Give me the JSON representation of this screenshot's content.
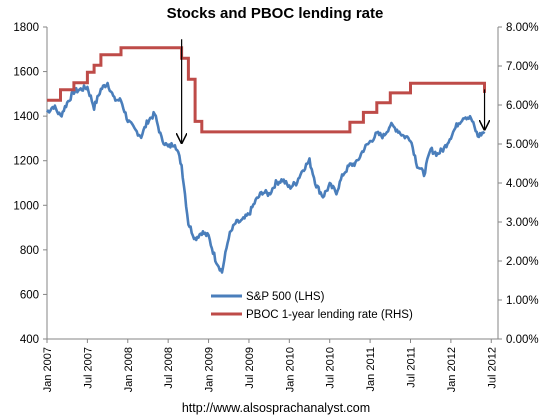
{
  "chart_data": {
    "type": "line",
    "title": "Stocks and PBOC lending rate",
    "footer": "http://www.alsosprachanalyst.com",
    "x_tick_labels": [
      "Jan 2007",
      "Jul 2007",
      "Jan 2008",
      "Jul 2008",
      "Jan 2009",
      "Jul 2009",
      "Jan 2010",
      "Jul 2010",
      "Jan 2011",
      "Jul 2011",
      "Jan 2012",
      "Jul 2012"
    ],
    "y_left": {
      "min": 400,
      "max": 1800,
      "ticks": [
        "400",
        "600",
        "800",
        "1000",
        "1200",
        "1400",
        "1600",
        "1800"
      ]
    },
    "y_right": {
      "min": 0,
      "max": 8,
      "ticks": [
        "0.00%",
        "1.00%",
        "2.00%",
        "3.00%",
        "4.00%",
        "5.00%",
        "6.00%",
        "7.00%",
        "8.00%"
      ]
    },
    "legend_position": "bottom-right inside plot",
    "grid": false,
    "series": [
      {
        "name": "S&P 500 (LHS)",
        "axis": "left",
        "color": "#4a7ebb",
        "points": [
          [
            "2007-01",
            1418
          ],
          [
            "2007-02",
            1445
          ],
          [
            "2007-03",
            1400
          ],
          [
            "2007-04",
            1460
          ],
          [
            "2007-05",
            1510
          ],
          [
            "2007-06",
            1520
          ],
          [
            "2007-07",
            1530
          ],
          [
            "2007-08",
            1440
          ],
          [
            "2007-09",
            1520
          ],
          [
            "2007-10",
            1550
          ],
          [
            "2007-11",
            1475
          ],
          [
            "2007-12",
            1470
          ],
          [
            "2008-01",
            1380
          ],
          [
            "2008-02",
            1340
          ],
          [
            "2008-03",
            1310
          ],
          [
            "2008-04",
            1380
          ],
          [
            "2008-05",
            1410
          ],
          [
            "2008-06",
            1300
          ],
          [
            "2008-07",
            1260
          ],
          [
            "2008-08",
            1280
          ],
          [
            "2008-09",
            1180
          ],
          [
            "2008-10",
            920
          ],
          [
            "2008-11",
            850
          ],
          [
            "2008-12",
            880
          ],
          [
            "2009-01",
            860
          ],
          [
            "2009-02",
            760
          ],
          [
            "2009-03",
            700
          ],
          [
            "2009-04",
            860
          ],
          [
            "2009-05",
            920
          ],
          [
            "2009-06",
            930
          ],
          [
            "2009-07",
            960
          ],
          [
            "2009-08",
            1020
          ],
          [
            "2009-09",
            1060
          ],
          [
            "2009-10",
            1050
          ],
          [
            "2009-11",
            1100
          ],
          [
            "2009-12",
            1115
          ],
          [
            "2010-01",
            1080
          ],
          [
            "2010-02",
            1100
          ],
          [
            "2010-03",
            1160
          ],
          [
            "2010-04",
            1200
          ],
          [
            "2010-05",
            1090
          ],
          [
            "2010-06",
            1040
          ],
          [
            "2010-07",
            1090
          ],
          [
            "2010-08",
            1060
          ],
          [
            "2010-09",
            1140
          ],
          [
            "2010-10",
            1180
          ],
          [
            "2010-11",
            1190
          ],
          [
            "2010-12",
            1250
          ],
          [
            "2011-01",
            1285
          ],
          [
            "2011-02",
            1320
          ],
          [
            "2011-03",
            1310
          ],
          [
            "2011-04",
            1360
          ],
          [
            "2011-05",
            1340
          ],
          [
            "2011-06",
            1310
          ],
          [
            "2011-07",
            1300
          ],
          [
            "2011-08",
            1180
          ],
          [
            "2011-09",
            1140
          ],
          [
            "2011-10",
            1250
          ],
          [
            "2011-11",
            1230
          ],
          [
            "2011-12",
            1255
          ],
          [
            "2012-01",
            1310
          ],
          [
            "2012-02",
            1365
          ],
          [
            "2012-03",
            1400
          ],
          [
            "2012-04",
            1390
          ],
          [
            "2012-05",
            1310
          ],
          [
            "2012-06",
            1330
          ]
        ]
      },
      {
        "name": "PBOC 1-year lending rate (RHS)",
        "axis": "right",
        "color": "#be4b48",
        "points": [
          [
            "2007-01",
            6.12
          ],
          [
            "2007-03",
            6.39
          ],
          [
            "2007-05",
            6.57
          ],
          [
            "2007-07",
            6.84
          ],
          [
            "2007-08",
            7.02
          ],
          [
            "2007-09",
            7.29
          ],
          [
            "2007-12",
            7.47
          ],
          [
            "2008-09",
            7.2
          ],
          [
            "2008-10",
            6.93
          ],
          [
            "2008-10",
            6.66
          ],
          [
            "2008-11",
            5.58
          ],
          [
            "2008-12",
            5.31
          ],
          [
            "2010-10",
            5.56
          ],
          [
            "2010-12",
            5.81
          ],
          [
            "2011-02",
            6.06
          ],
          [
            "2011-04",
            6.31
          ],
          [
            "2011-07",
            6.56
          ],
          [
            "2012-06",
            6.31
          ]
        ]
      }
    ],
    "annotations": [
      {
        "type": "arrow",
        "from": [
          "2008-09",
          1745
        ],
        "to": [
          "2008-09",
          1280
        ]
      },
      {
        "type": "arrow",
        "from": [
          "2012-06",
          1520
        ],
        "to": [
          "2012-06",
          1340
        ]
      }
    ]
  }
}
